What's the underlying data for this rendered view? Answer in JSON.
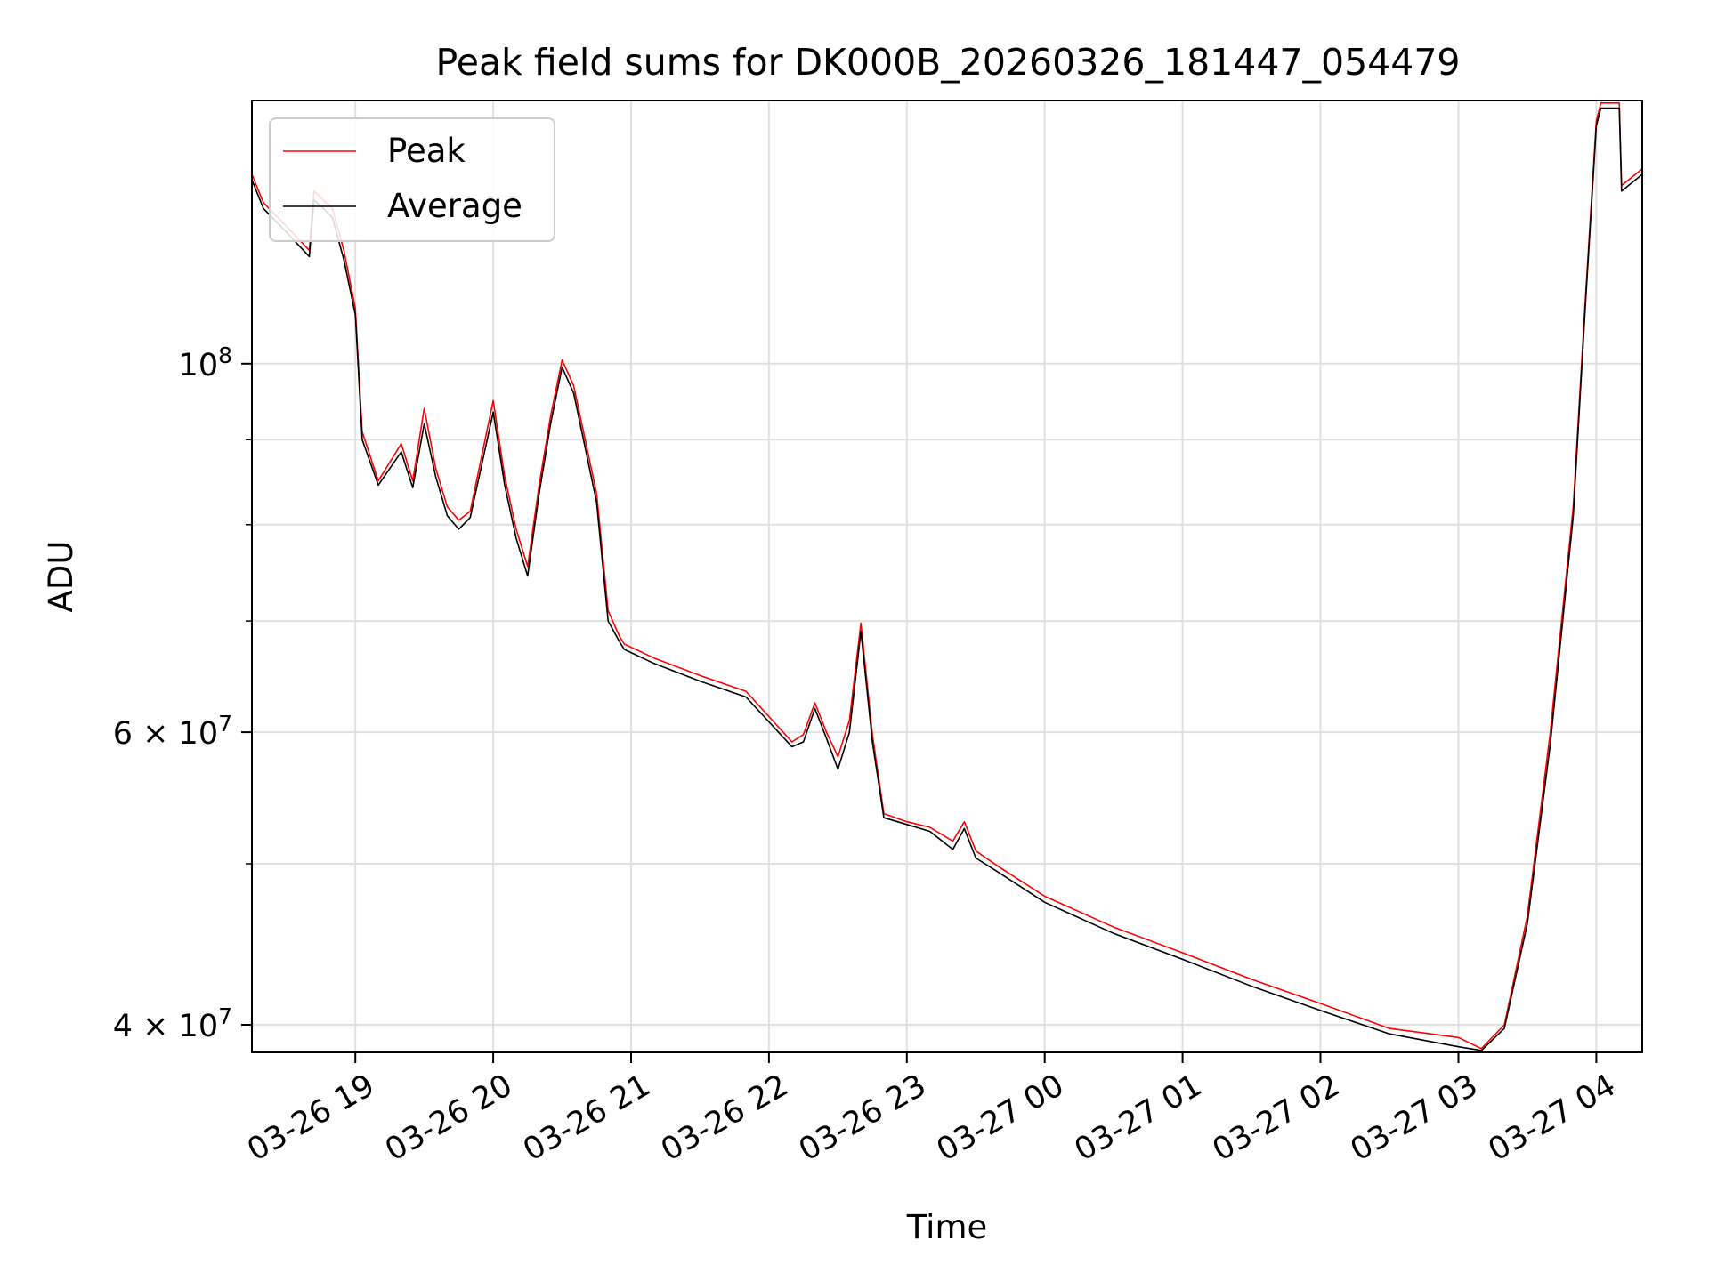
{
  "chart_data": {
    "type": "line",
    "title": "Peak field sums for DK000B_20260326_181447_054479",
    "xlabel": "Time",
    "ylabel": "ADU",
    "yscale": "log",
    "grid": true,
    "legend_position": "top-left",
    "xlim": [
      "2026-03-26 18:15",
      "2026-03-27 04:20"
    ],
    "ylim": [
      38500000,
      144000000
    ],
    "x_ticks": [
      {
        "t": "2026-03-26 19:00",
        "label": "03-26 19"
      },
      {
        "t": "2026-03-26 20:00",
        "label": "03-26 20"
      },
      {
        "t": "2026-03-26 21:00",
        "label": "03-26 21"
      },
      {
        "t": "2026-03-26 22:00",
        "label": "03-26 22"
      },
      {
        "t": "2026-03-26 23:00",
        "label": "03-26 23"
      },
      {
        "t": "2026-03-27 00:00",
        "label": "03-27 00"
      },
      {
        "t": "2026-03-27 01:00",
        "label": "03-27 01"
      },
      {
        "t": "2026-03-27 02:00",
        "label": "03-27 02"
      },
      {
        "t": "2026-03-27 03:00",
        "label": "03-27 03"
      },
      {
        "t": "2026-03-27 04:00",
        "label": "03-27 04"
      }
    ],
    "y_major_ticks": [
      {
        "v": 40000000,
        "base": "4 × 10",
        "exp": "7"
      },
      {
        "v": 60000000,
        "base": "6 × 10",
        "exp": "7"
      },
      {
        "v": 100000000,
        "base": "10",
        "exp": "8"
      }
    ],
    "y_minor_ticks": [
      50000000,
      70000000,
      80000000,
      90000000
    ],
    "series": [
      {
        "name": "Peak",
        "color": "#ff0000",
        "x": [
          "2026-03-26 18:15",
          "2026-03-26 18:20",
          "2026-03-26 18:30",
          "2026-03-26 18:40",
          "2026-03-26 18:42",
          "2026-03-26 18:50",
          "2026-03-26 18:55",
          "2026-03-26 19:00",
          "2026-03-26 19:03",
          "2026-03-26 19:10",
          "2026-03-26 19:20",
          "2026-03-26 19:25",
          "2026-03-26 19:30",
          "2026-03-26 19:35",
          "2026-03-26 19:40",
          "2026-03-26 19:45",
          "2026-03-26 19:50",
          "2026-03-26 20:00",
          "2026-03-26 20:05",
          "2026-03-26 20:10",
          "2026-03-26 20:15",
          "2026-03-26 20:20",
          "2026-03-26 20:25",
          "2026-03-26 20:30",
          "2026-03-26 20:35",
          "2026-03-26 20:40",
          "2026-03-26 20:45",
          "2026-03-26 20:50",
          "2026-03-26 20:55",
          "2026-03-26 20:57",
          "2026-03-26 21:10",
          "2026-03-26 21:30",
          "2026-03-26 21:50",
          "2026-03-26 22:10",
          "2026-03-26 22:15",
          "2026-03-26 22:20",
          "2026-03-26 22:25",
          "2026-03-26 22:30",
          "2026-03-26 22:35",
          "2026-03-26 22:40",
          "2026-03-26 22:45",
          "2026-03-26 22:50",
          "2026-03-26 23:00",
          "2026-03-26 23:10",
          "2026-03-26 23:20",
          "2026-03-26 23:25",
          "2026-03-26 23:30",
          "2026-03-26 23:40",
          "2026-03-27 00:00",
          "2026-03-27 00:30",
          "2026-03-27 01:00",
          "2026-03-27 01:30",
          "2026-03-27 02:00",
          "2026-03-27 02:30",
          "2026-03-27 03:00",
          "2026-03-27 03:10",
          "2026-03-27 03:20",
          "2026-03-27 03:30",
          "2026-03-27 03:40",
          "2026-03-27 03:50",
          "2026-03-27 03:55",
          "2026-03-27 04:00",
          "2026-03-27 04:02",
          "2026-03-27 04:10",
          "2026-03-27 04:11",
          "2026-03-27 04:20"
        ],
        "y": [
          130000000,
          125000000,
          121000000,
          117000000,
          127000000,
          124000000,
          117000000,
          108000000,
          91000000,
          85000000,
          89500000,
          85000000,
          94000000,
          86500000,
          82000000,
          80500000,
          81500000,
          95000000,
          85500000,
          79500000,
          75500000,
          84500000,
          93000000,
          100500000,
          97000000,
          90000000,
          83500000,
          71000000,
          68500000,
          67800000,
          66500000,
          64900000,
          63500000,
          59200000,
          59800000,
          62500000,
          60000000,
          58000000,
          61000000,
          69800000,
          59800000,
          53600000,
          53000000,
          52600000,
          51600000,
          53000000,
          50900000,
          49800000,
          47800000,
          45800000,
          44200000,
          42600000,
          41200000,
          39800000,
          39300000,
          38700000,
          40000000,
          46500000,
          60000000,
          82000000,
          108000000,
          140000000,
          143500000,
          143500000,
          128000000,
          131000000
        ]
      },
      {
        "name": "Average",
        "color": "#000000",
        "x": [
          "2026-03-26 18:15",
          "2026-03-26 18:20",
          "2026-03-26 18:30",
          "2026-03-26 18:40",
          "2026-03-26 18:42",
          "2026-03-26 18:50",
          "2026-03-26 18:55",
          "2026-03-26 19:00",
          "2026-03-26 19:03",
          "2026-03-26 19:10",
          "2026-03-26 19:20",
          "2026-03-26 19:25",
          "2026-03-26 19:30",
          "2026-03-26 19:35",
          "2026-03-26 19:40",
          "2026-03-26 19:45",
          "2026-03-26 19:50",
          "2026-03-26 20:00",
          "2026-03-26 20:05",
          "2026-03-26 20:10",
          "2026-03-26 20:15",
          "2026-03-26 20:20",
          "2026-03-26 20:25",
          "2026-03-26 20:30",
          "2026-03-26 20:35",
          "2026-03-26 20:40",
          "2026-03-26 20:45",
          "2026-03-26 20:50",
          "2026-03-26 20:55",
          "2026-03-26 20:57",
          "2026-03-26 21:10",
          "2026-03-26 21:30",
          "2026-03-26 21:50",
          "2026-03-26 22:10",
          "2026-03-26 22:15",
          "2026-03-26 22:20",
          "2026-03-26 22:25",
          "2026-03-26 22:30",
          "2026-03-26 22:35",
          "2026-03-26 22:40",
          "2026-03-26 22:45",
          "2026-03-26 22:50",
          "2026-03-26 23:00",
          "2026-03-26 23:10",
          "2026-03-26 23:20",
          "2026-03-26 23:25",
          "2026-03-26 23:30",
          "2026-03-26 23:40",
          "2026-03-27 00:00",
          "2026-03-27 00:30",
          "2026-03-27 01:00",
          "2026-03-27 01:30",
          "2026-03-27 02:00",
          "2026-03-27 02:30",
          "2026-03-27 03:00",
          "2026-03-27 03:10",
          "2026-03-27 03:20",
          "2026-03-27 03:30",
          "2026-03-27 03:40",
          "2026-03-27 03:50",
          "2026-03-27 03:55",
          "2026-03-27 04:00",
          "2026-03-27 04:02",
          "2026-03-27 04:10",
          "2026-03-27 04:11",
          "2026-03-27 04:20"
        ],
        "y": [
          129000000,
          124000000,
          120000000,
          116000000,
          125500000,
          122500000,
          115500000,
          107000000,
          90000000,
          84500000,
          88500000,
          84200000,
          92000000,
          85500000,
          81000000,
          79500000,
          80800000,
          93500000,
          84500000,
          78500000,
          74500000,
          83500000,
          92000000,
          99500000,
          96000000,
          89000000,
          82500000,
          70000000,
          68000000,
          67300000,
          66000000,
          64400000,
          63000000,
          58800000,
          59200000,
          62000000,
          59500000,
          57000000,
          60000000,
          69000000,
          59200000,
          53300000,
          52800000,
          52300000,
          51000000,
          52500000,
          50400000,
          49400000,
          47400000,
          45400000,
          43800000,
          42200000,
          40800000,
          39500000,
          38800000,
          38600000,
          39800000,
          46000000,
          59000000,
          81000000,
          107000000,
          139000000,
          142500000,
          142500000,
          127000000,
          130000000
        ]
      }
    ]
  }
}
